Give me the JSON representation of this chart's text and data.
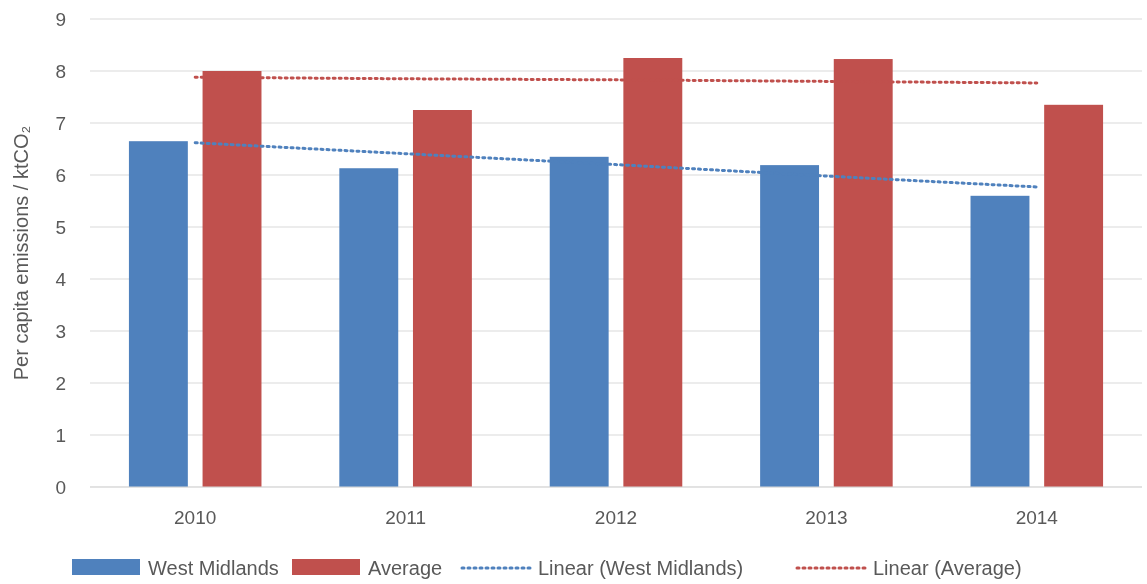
{
  "chart_data": {
    "type": "bar",
    "ylabel": "Per capita emissions / ktCO₂",
    "categories": [
      "2010",
      "2011",
      "2012",
      "2013",
      "2014"
    ],
    "series": [
      {
        "name": "West Midlands",
        "color": "#4f81bd",
        "values": [
          6.65,
          6.13,
          6.35,
          6.19,
          5.6
        ]
      },
      {
        "name": "Average",
        "color": "#c0504d",
        "values": [
          8.0,
          7.25,
          8.25,
          8.23,
          7.35
        ]
      },
      {
        "name": "Linear (West Midlands)",
        "type": "line",
        "line_style": "dotted",
        "color": "#4f81bd",
        "values": [
          6.62,
          6.41,
          6.2,
          5.98,
          5.77
        ]
      },
      {
        "name": "Linear (Average)",
        "type": "line",
        "line_style": "dotted",
        "color": "#c0504d",
        "values": [
          7.88,
          7.85,
          7.83,
          7.8,
          7.77
        ]
      }
    ],
    "ylim": [
      0,
      9
    ],
    "yticks": [
      0,
      1,
      2,
      3,
      4,
      5,
      6,
      7,
      8,
      9
    ],
    "grid": "y",
    "legend": "bottom"
  }
}
